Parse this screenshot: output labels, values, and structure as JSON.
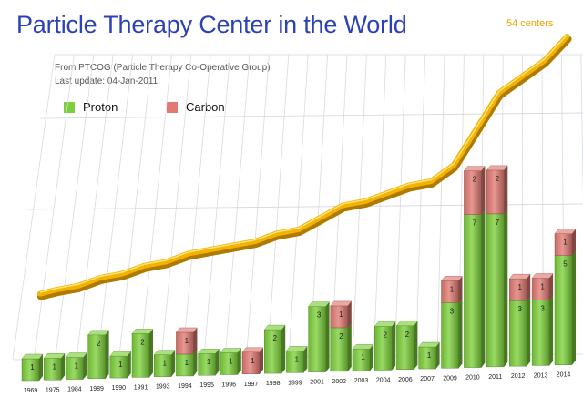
{
  "header": {
    "title": "Particle Therapy Center in the World",
    "source": "From PTCOG (Particle Therapy Co-Operative Group)",
    "updated": "Last update: 04-Jan-2011",
    "total_label": "54 centers"
  },
  "legend": {
    "proton": "Proton",
    "carbon": "Carbon"
  },
  "colors": {
    "proton": "#7ccf3a",
    "carbon": "#e07a72",
    "line": "#f1b400",
    "title": "#2c41b8"
  },
  "chart_data": {
    "type": "bar",
    "title": "Particle Therapy Center in the World",
    "stacked": true,
    "categories": [
      "1969",
      "1975",
      "1984",
      "1989",
      "1990",
      "1991",
      "1993",
      "1994",
      "1995",
      "1996",
      "1997",
      "1998",
      "1999",
      "2001",
      "2002",
      "2003",
      "2004",
      "2006",
      "2007",
      "2009",
      "2010",
      "2011",
      "2012",
      "2013",
      "2014"
    ],
    "series": [
      {
        "name": "Proton",
        "values": [
          1,
          1,
          1,
          2,
          1,
          2,
          1,
          1,
          1,
          1,
          0,
          2,
          1,
          3,
          2,
          1,
          2,
          2,
          1,
          3,
          7,
          7,
          3,
          3,
          5
        ]
      },
      {
        "name": "Carbon",
        "values": [
          0,
          0,
          0,
          0,
          0,
          0,
          0,
          1,
          0,
          0,
          1,
          0,
          0,
          0,
          1,
          0,
          0,
          0,
          0,
          1,
          2,
          2,
          1,
          1,
          1
        ]
      }
    ],
    "cumulative_line": [
      1,
      2,
      3,
      5,
      6,
      8,
      9,
      11,
      12,
      13,
      14,
      16,
      17,
      20,
      23,
      24,
      26,
      28,
      29,
      33,
      42,
      51,
      55,
      59,
      65
    ],
    "annotation": "54 centers",
    "legend_position": "top-left",
    "grid": true
  }
}
